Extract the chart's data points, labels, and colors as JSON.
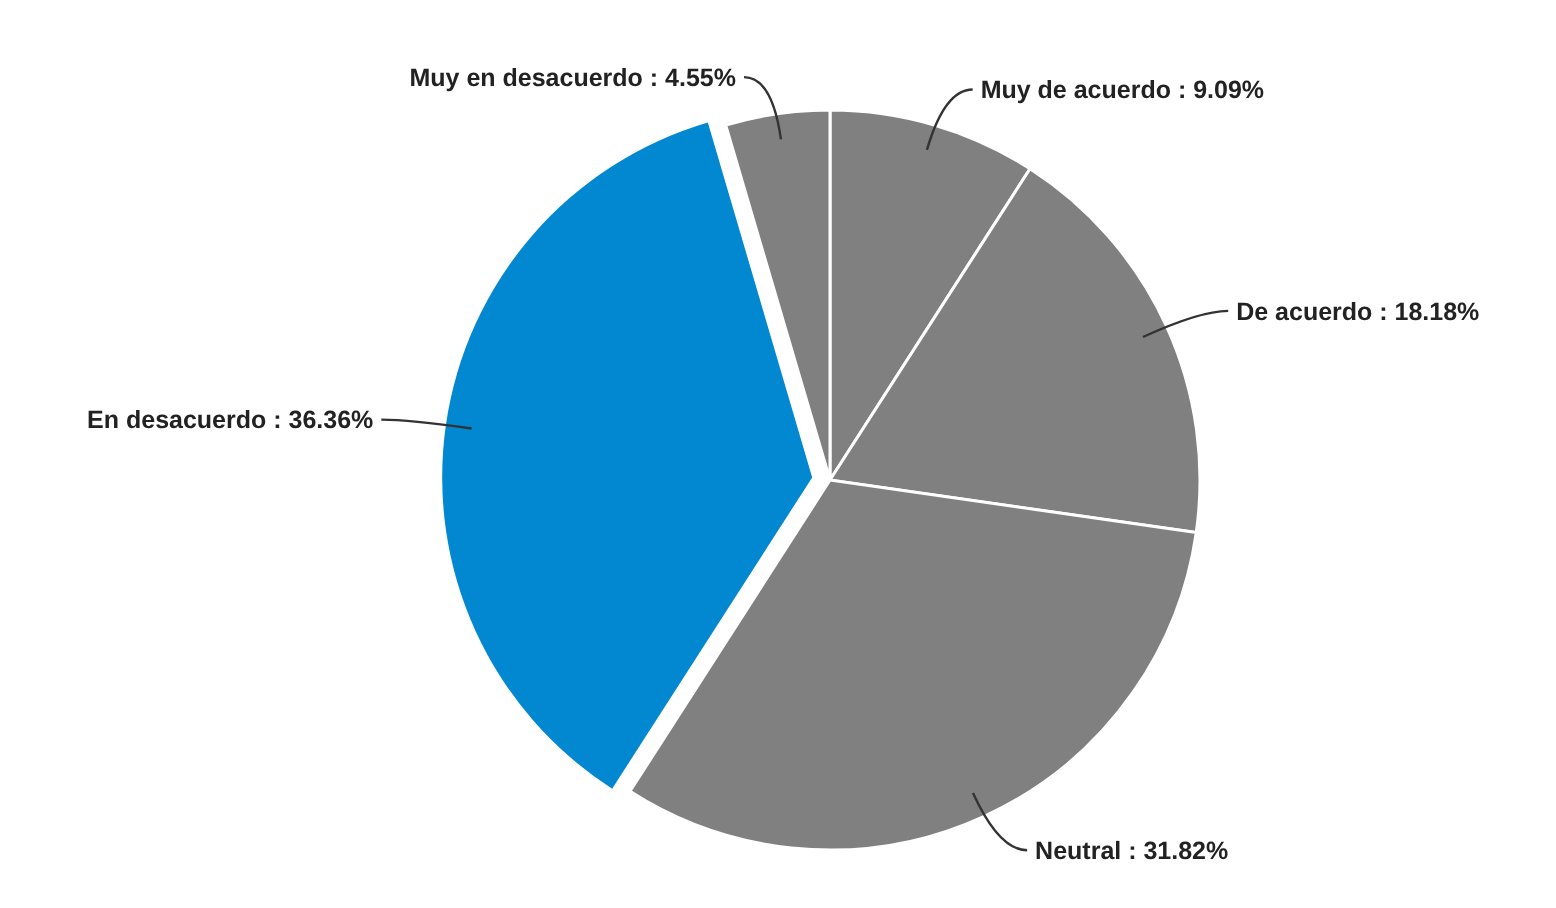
{
  "chart_data": {
    "type": "pie",
    "categories": [
      "Muy de acuerdo",
      "De acuerdo",
      "Neutral",
      "En desacuerdo",
      "Muy en desacuerdo"
    ],
    "values": [
      9.09,
      18.18,
      31.82,
      36.36,
      4.55
    ],
    "colors": [
      "#808080",
      "#808080",
      "#808080",
      "#0288d1",
      "#808080"
    ],
    "value_labels": [
      "9.09%",
      "18.18%",
      "31.82%",
      "36.36%",
      "4.55%"
    ]
  }
}
